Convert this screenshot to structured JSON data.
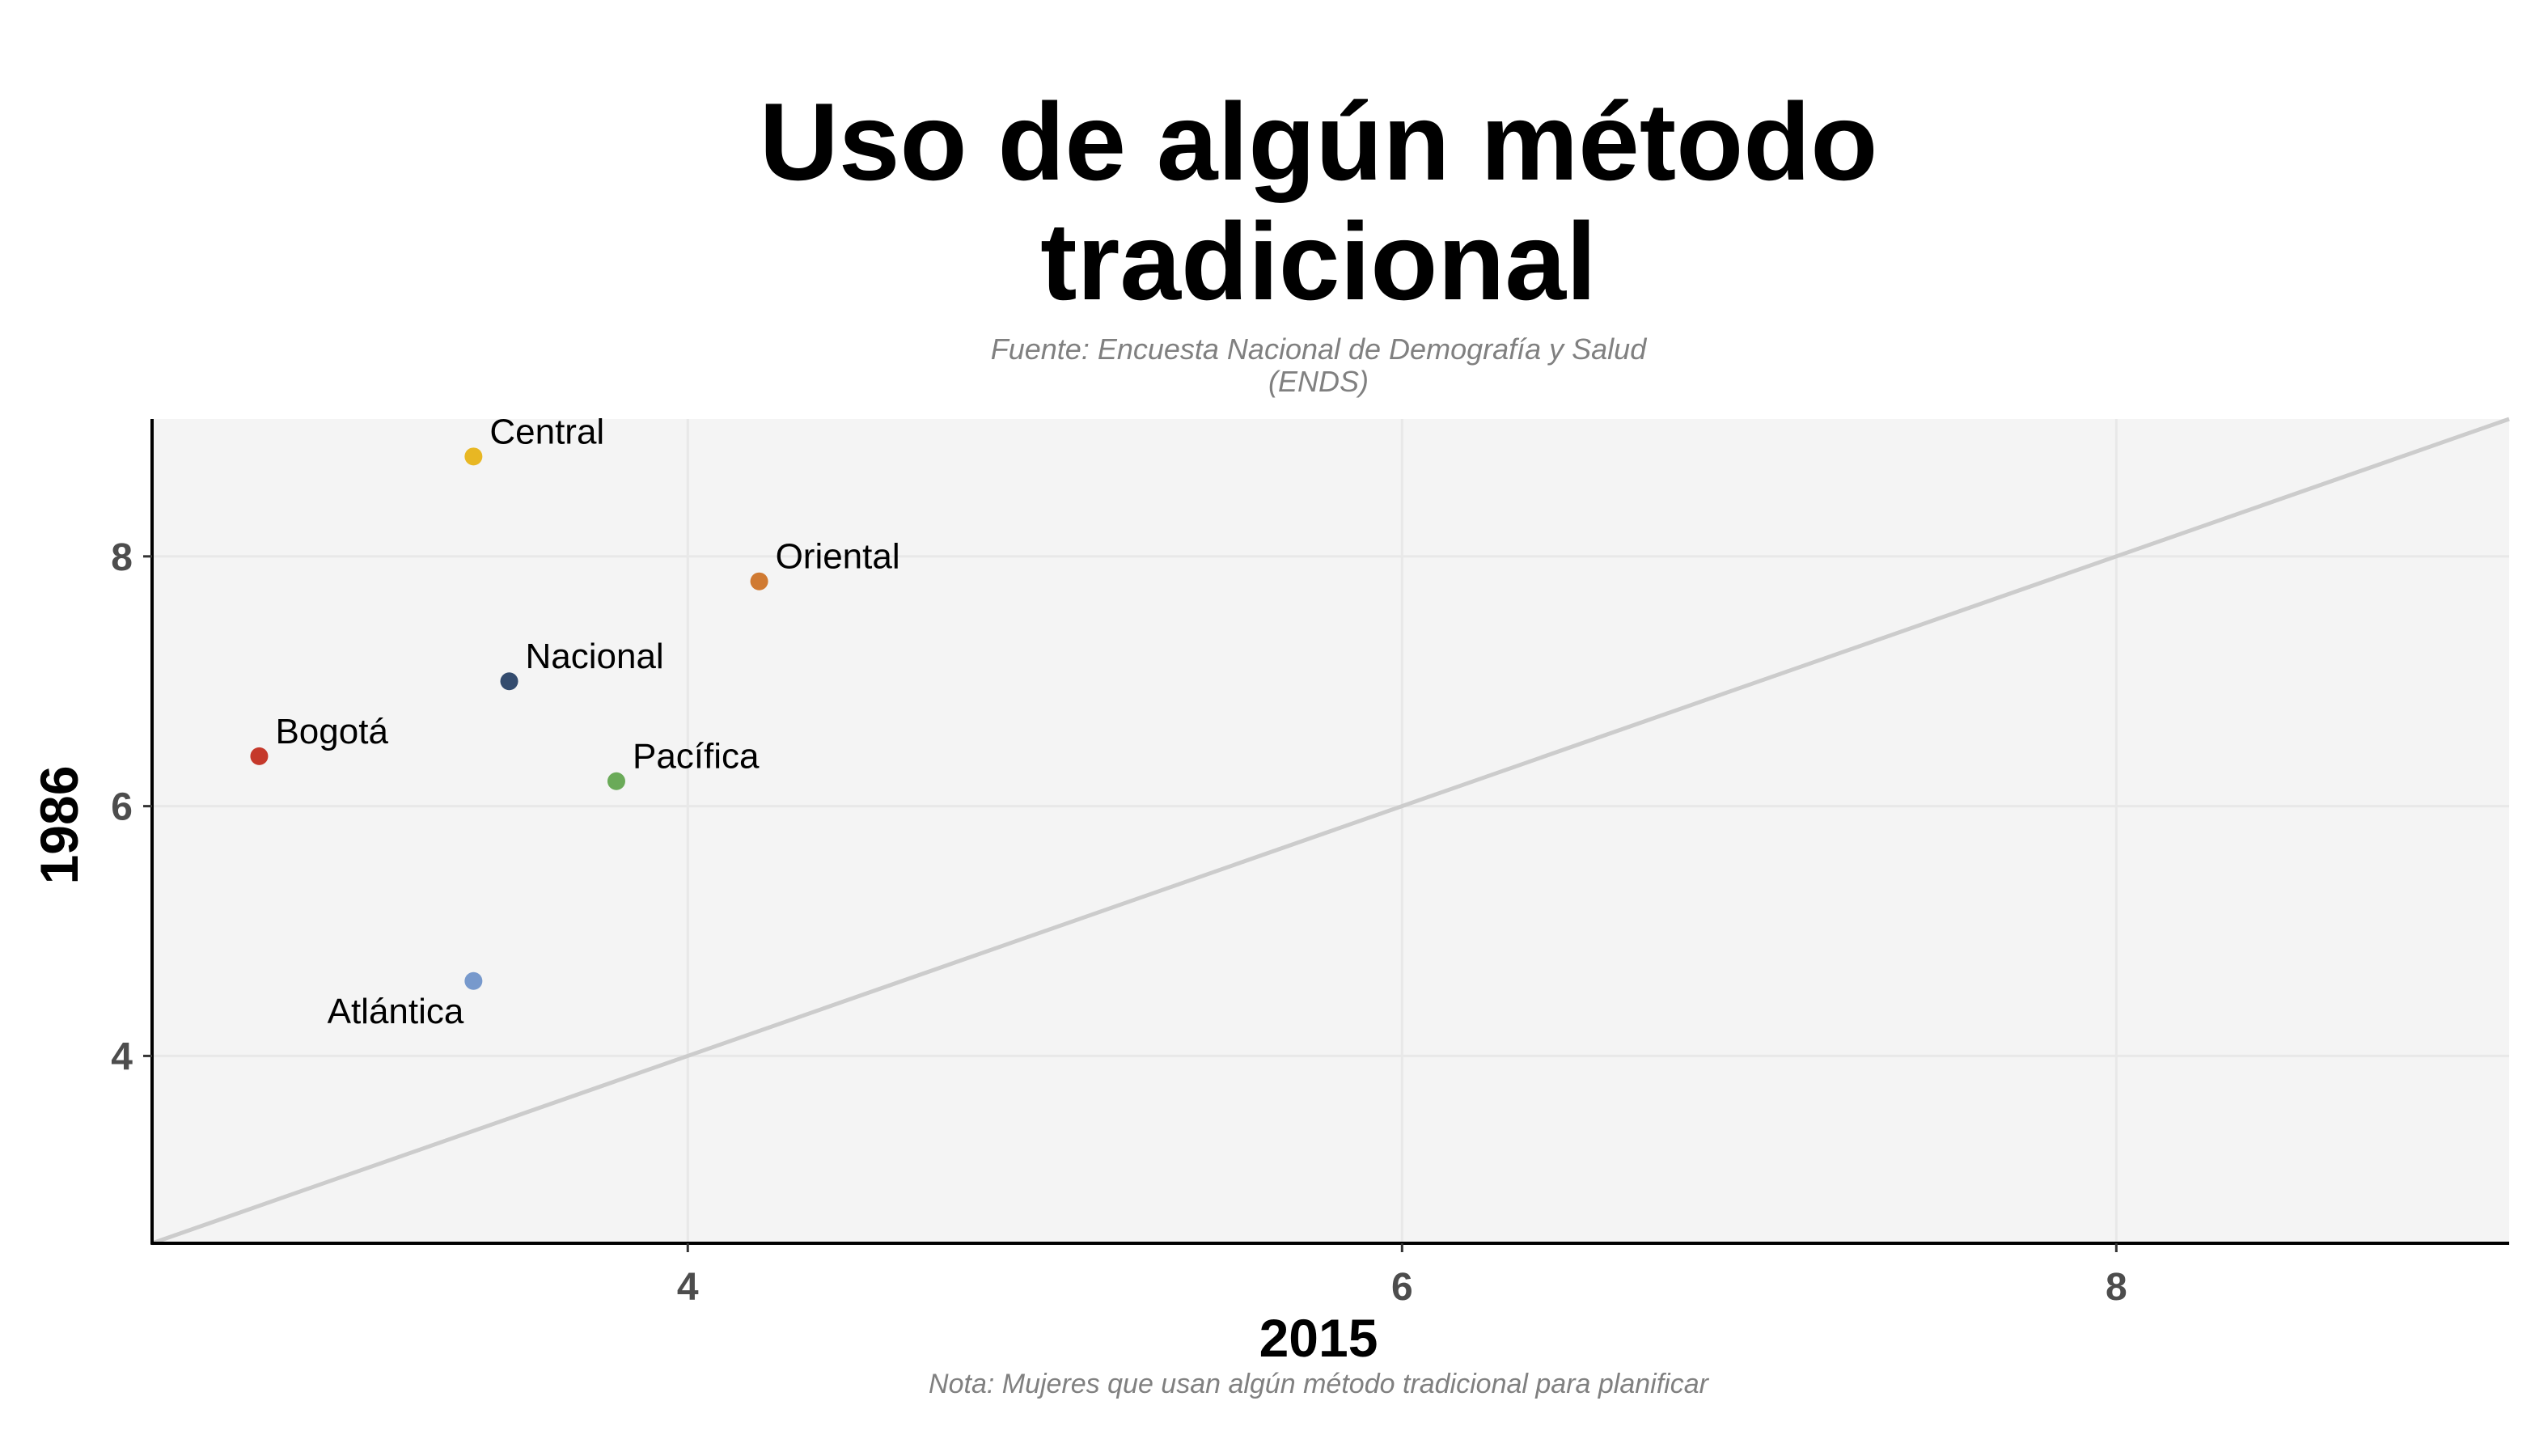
{
  "chart_data": {
    "type": "scatter",
    "title_lines": [
      "Uso de algún método",
      "tradicional"
    ],
    "subtitle_lines": [
      "Fuente: Encuesta Nacional de Demografía y Salud",
      "(ENDS)"
    ],
    "caption": "Nota: Mujeres que usan algún método tradicional para planificar",
    "xlabel": "2015",
    "ylabel": "1986",
    "xlim": [
      2.5,
      9.1
    ],
    "ylim": [
      2.5,
      9.1
    ],
    "xticks": [
      4,
      6,
      8
    ],
    "yticks": [
      4,
      6,
      8
    ],
    "grid": true,
    "reference_line": "y = x",
    "colors": {
      "panel_background": "#f4f4f4",
      "grid": "#e8e8e8",
      "reference_line": "#cccccc",
      "axis_line": "#000000"
    },
    "points": [
      {
        "label": "Central",
        "x": 3.4,
        "y": 8.8,
        "color": "#e8b723"
      },
      {
        "label": "Oriental",
        "x": 4.2,
        "y": 7.8,
        "color": "#d07a32"
      },
      {
        "label": "Nacional",
        "x": 3.5,
        "y": 7.0,
        "color": "#344c6e"
      },
      {
        "label": "Bogotá",
        "x": 2.8,
        "y": 6.4,
        "color": "#c5392b"
      },
      {
        "label": "Pacífica",
        "x": 3.8,
        "y": 6.2,
        "color": "#6aaa58"
      },
      {
        "label": "Atlántica",
        "x": 3.4,
        "y": 4.6,
        "color": "#7799cc"
      }
    ]
  }
}
